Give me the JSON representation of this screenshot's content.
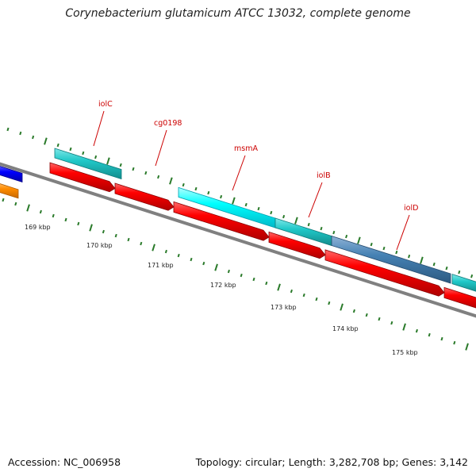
{
  "title": "Corynebacterium glutamicum ATCC 13032, complete genome",
  "footer": {
    "accession": "Accession: NC_006958",
    "stats": "Topology: circular; Length: 3,282,708 bp; Genes: 3,142"
  },
  "colors": {
    "backbone": "#808080",
    "forward_red": "#ff0000",
    "cds_cyan": "#20c8c8",
    "bright_cyan": "#00ffff",
    "steel_blue": "#4682b4",
    "blue": "#0000ff",
    "orange": "#ff8c00",
    "tick_green": "#2a7a2a",
    "gene_label": "#cc0000"
  },
  "scale_labels": [
    "169 kbp",
    "170 kbp",
    "171 kbp",
    "172 kbp",
    "173 kbp",
    "174 kbp",
    "175 kbp"
  ],
  "gene_labels": [
    "iolC",
    "cg0198",
    "msmA",
    "iolB",
    "iolD"
  ]
}
